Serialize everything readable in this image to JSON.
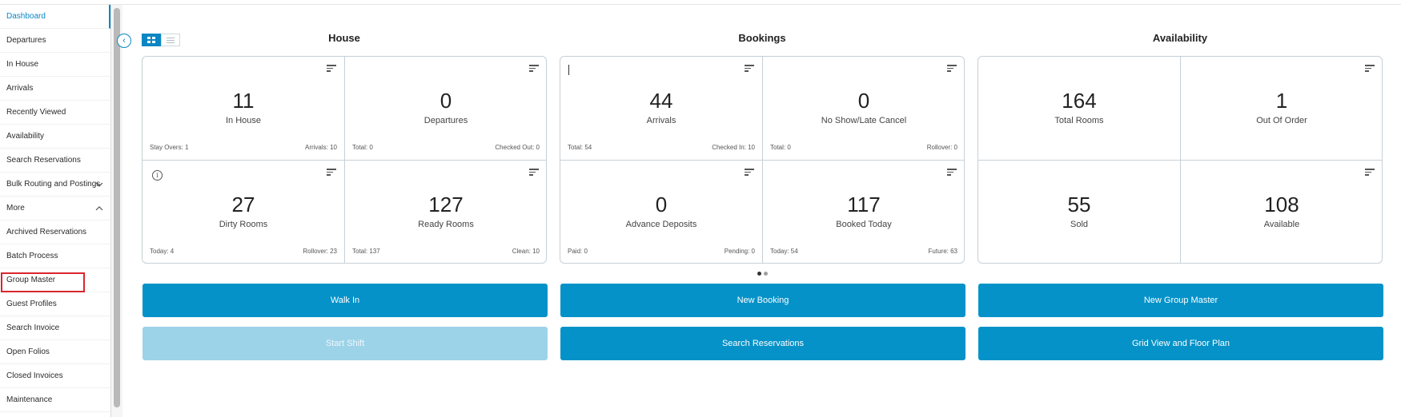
{
  "sidebar": {
    "items": [
      {
        "label": "Dashboard",
        "active": true
      },
      {
        "label": "Departures"
      },
      {
        "label": "In House"
      },
      {
        "label": "Arrivals"
      },
      {
        "label": "Recently Viewed"
      },
      {
        "label": "Availability"
      },
      {
        "label": "Search Reservations"
      },
      {
        "label": "Bulk Routing and Postings",
        "chevron": "chevron-down-icon"
      },
      {
        "label": "More",
        "chevron": "chevron-up-icon"
      },
      {
        "label": "Archived Reservations"
      },
      {
        "label": "Batch Process"
      },
      {
        "label": "Group Master",
        "highlighted": true
      },
      {
        "label": "Guest Profiles"
      },
      {
        "label": "Search Invoice"
      },
      {
        "label": "Open Folios"
      },
      {
        "label": "Closed Invoices"
      },
      {
        "label": "Maintenance"
      }
    ]
  },
  "view_toggle": {
    "grid": "grid-view-icon",
    "list": "list-view-icon"
  },
  "sections": {
    "house": {
      "title": "House",
      "tiles": [
        {
          "value": "11",
          "label": "In House",
          "footer_left": "Stay Overs: 1",
          "footer_right": "Arrivals: 10"
        },
        {
          "value": "0",
          "label": "Departures",
          "footer_left": "Total: 0",
          "footer_right": "Checked Out: 0"
        },
        {
          "value": "27",
          "label": "Dirty Rooms",
          "footer_left": "Today: 4",
          "footer_right": "Rollover: 23"
        },
        {
          "value": "127",
          "label": "Ready Rooms",
          "footer_left": "Total: 137",
          "footer_right": "Clean: 10"
        }
      ]
    },
    "bookings": {
      "title": "Bookings",
      "tiles": [
        {
          "value": "44",
          "label": "Arrivals",
          "footer_left": "Total: 54",
          "footer_right": "Checked In: 10"
        },
        {
          "value": "0",
          "label": "No Show/Late Cancel",
          "footer_left": "Total: 0",
          "footer_right": "Rollover: 0"
        },
        {
          "value": "0",
          "label": "Advance Deposits",
          "footer_left": "Paid: 0",
          "footer_right": "Pending: 0"
        },
        {
          "value": "117",
          "label": "Booked Today",
          "footer_left": "Today: 54",
          "footer_right": "Future: 63"
        }
      ]
    },
    "availability": {
      "title": "Availability",
      "tiles": [
        {
          "value": "164",
          "label": "Total Rooms"
        },
        {
          "value": "1",
          "label": "Out Of Order"
        },
        {
          "value": "55",
          "label": "Sold"
        },
        {
          "value": "108",
          "label": "Available"
        }
      ]
    }
  },
  "info_glyph": "i",
  "collapse_glyph": "‹",
  "buttons": {
    "walk_in": "Walk In",
    "start_shift": "Start Shift",
    "new_booking": "New Booking",
    "search_reservations": "Search Reservations",
    "new_group_master": "New Group Master",
    "grid_view_floor_plan": "Grid View and Floor Plan"
  },
  "colors": {
    "accent": "#0592c8",
    "accent_disabled": "#9dd3e8",
    "active_nav": "#0a86c4",
    "highlight_border": "#d9262c"
  }
}
